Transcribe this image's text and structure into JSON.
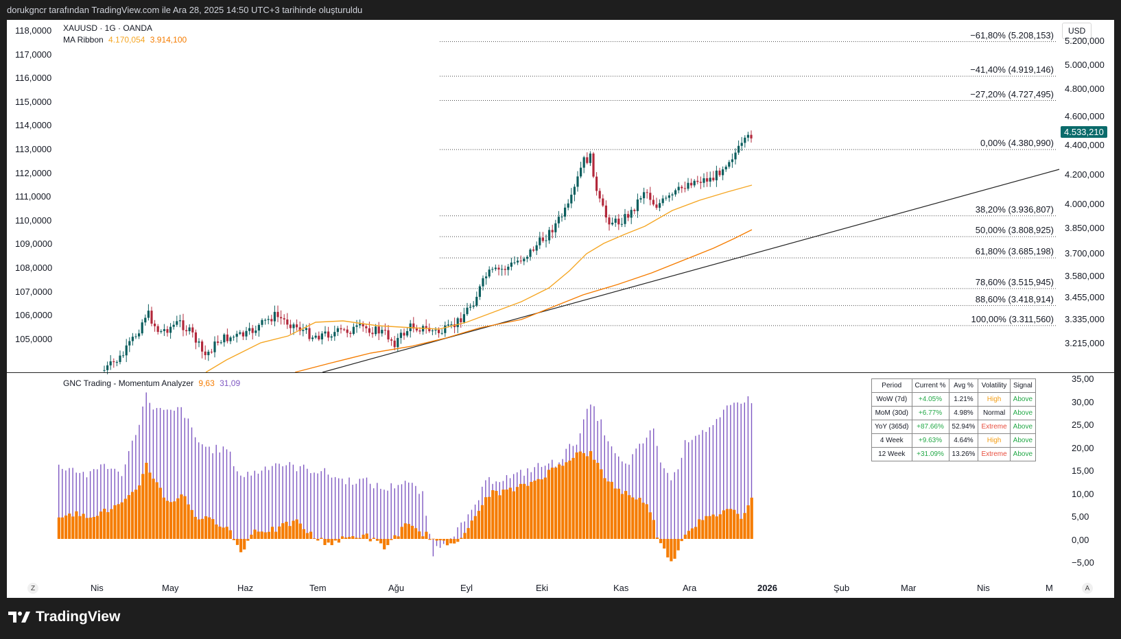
{
  "caption": "dorukgncr tarafından TradingView.com ile Ara 28, 2025 14:50 UTC+3 tarihinde oluşturuldu",
  "brand": "TradingView",
  "symbol_line": "XAUUSD · 1G · OANDA",
  "ma_ribbon": {
    "label": "MA Ribbon",
    "v1": "4.170,054",
    "v2": "3.914,100"
  },
  "currency": "USD",
  "current_price": "4.533,210",
  "left_axis": [
    "118,0000",
    "117,0000",
    "116,0000",
    "115,0000",
    "114,0000",
    "113,0000",
    "112,0000",
    "111,0000",
    "110,0000",
    "109,0000",
    "108,0000",
    "107,0000",
    "106,0000",
    "105,0000"
  ],
  "right_axis": [
    "5.200,000",
    "5.000,000",
    "4.800,000",
    "4.600,000",
    "4.400,000",
    "4.200,000",
    "4.000,000",
    "3.850,000",
    "3.700,000",
    "3.580,000",
    "3.455,000",
    "3.335,000",
    "3.215,000"
  ],
  "fib_levels": [
    {
      "label": "−61,80% (5.208,153)",
      "price": 5208.153
    },
    {
      "label": "−41,40% (4.919,146)",
      "price": 4919.146
    },
    {
      "label": "−27,20% (4.727,495)",
      "price": 4727.495
    },
    {
      "label": "0,00% (4.380,990)",
      "price": 4380.99
    },
    {
      "label": "38,20% (3.936,807)",
      "price": 3936.807
    },
    {
      "label": "50,00% (3.808,925)",
      "price": 3808.925
    },
    {
      "label": "61,80% (3.685,198)",
      "price": 3685.198
    },
    {
      "label": "78,60% (3.515,945)",
      "price": 3515.945
    },
    {
      "label": "88,60% (3.418,914)",
      "price": 3418.914
    },
    {
      "label": "100,00% (3.311,560)",
      "price": 3311.56
    }
  ],
  "indicator": {
    "name": "GNC Trading - Momentum Analyzer",
    "v1": "9,63",
    "v2": "31,09"
  },
  "ind_axis": [
    "35,00",
    "30,00",
    "25,00",
    "20,00",
    "15,00",
    "10,00",
    "5,00",
    "0,00",
    "−5,00"
  ],
  "time_axis": [
    "Nis",
    "May",
    "Haz",
    "Tem",
    "Ağu",
    "Eyl",
    "Eki",
    "Kas",
    "Ara",
    "2026",
    "Şub",
    "Mar",
    "Nis",
    "M"
  ],
  "axis_buttons": {
    "left": "Z",
    "right": "A"
  },
  "stats_table": {
    "headers": [
      "Period",
      "Current %",
      "Avg %",
      "Volatility",
      "Signal"
    ],
    "rows": [
      [
        "WoW (7d)",
        "+4.05%",
        "1.21%",
        "High",
        "Above"
      ],
      [
        "MoM (30d)",
        "+6.77%",
        "4.98%",
        "Normal",
        "Above"
      ],
      [
        "YoY (365d)",
        "+87.66%",
        "52.94%",
        "Extreme",
        "Above"
      ],
      [
        "4 Week",
        "+9.63%",
        "4.64%",
        "High",
        "Above"
      ],
      [
        "12 Week",
        "+31.09%",
        "13.26%",
        "Extreme",
        "Above"
      ]
    ]
  },
  "colors": {
    "up": "#26a69a",
    "down": "#ef5350",
    "dark_up": "#0b5e5e",
    "dark_down": "#b2283b",
    "ma_fast": "#f5a623",
    "ma_slow": "#f57c00",
    "hist_purple": "#7e57c2",
    "hist_orange": "#f57c00",
    "badge": "#0b6b6b"
  },
  "chart_data": {
    "type": "candlestick",
    "symbol": "XAUUSD",
    "timeframe": "1G",
    "last_close": 4533.21,
    "ma_ribbon": [
      4170.054,
      3914.1
    ],
    "momentum": {
      "fast": 9.63,
      "slow": 31.09
    }
  }
}
